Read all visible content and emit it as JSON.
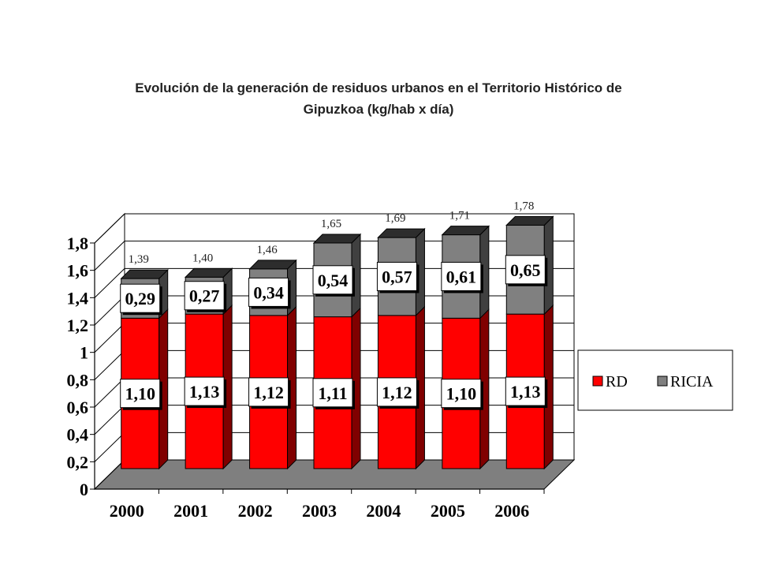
{
  "chart_data": {
    "type": "bar",
    "stacked": true,
    "title_line1": "Evolución de la generación de residuos urbanos en el Territorio Histórico de",
    "title_line2": "Gipuzkoa (kg/hab x día)",
    "categories": [
      "2000",
      "2001",
      "2002",
      "2003",
      "2004",
      "2005",
      "2006"
    ],
    "series": [
      {
        "name": "RD",
        "color": "#ff0000",
        "values": [
          1.1,
          1.13,
          1.12,
          1.11,
          1.12,
          1.1,
          1.13
        ],
        "labels": [
          "1,10",
          "1,13",
          "1,12",
          "1,11",
          "1,12",
          "1,10",
          "1,13"
        ]
      },
      {
        "name": "RICIA",
        "color": "#808080",
        "values": [
          0.29,
          0.27,
          0.34,
          0.54,
          0.57,
          0.61,
          0.65
        ],
        "labels": [
          "0,29",
          "0,27",
          "0,34",
          "0,54",
          "0,57",
          "0,61",
          "0,65"
        ]
      }
    ],
    "totals": [
      1.39,
      1.4,
      1.46,
      1.65,
      1.69,
      1.71,
      1.78
    ],
    "total_labels": [
      "1,39",
      "1,40",
      "1,46",
      "1,65",
      "1,69",
      "1,71",
      "1,78"
    ],
    "yticks": [
      0,
      0.2,
      0.4,
      0.6,
      0.8,
      1,
      1.2,
      1.4,
      1.6,
      1.8
    ],
    "ytick_labels": [
      "0",
      "0,2",
      "0,4",
      "0,6",
      "0,8",
      "1",
      "1,2",
      "1,4",
      "1,6",
      "1,8"
    ],
    "ylim": [
      0,
      1.8
    ],
    "legend_position": "right",
    "xlabel": "",
    "ylabel": ""
  }
}
